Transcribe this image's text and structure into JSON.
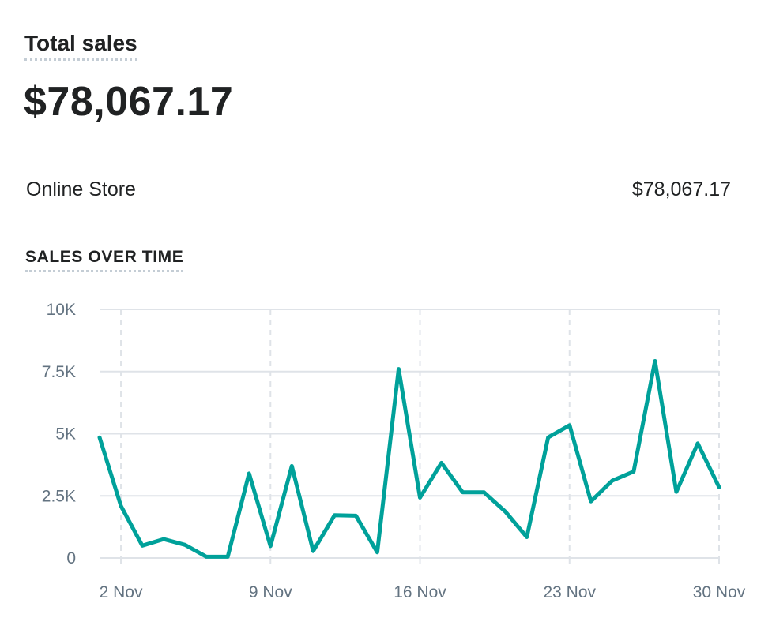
{
  "card": {
    "title": "Total sales",
    "total": "$78,067.17"
  },
  "breakdown": [
    {
      "label": "Online Store",
      "value": "$78,067.17"
    }
  ],
  "section": {
    "heading": "SALES OVER TIME"
  },
  "colors": {
    "line": "#00a19a",
    "grid": "#dfe3e8",
    "axis_text": "#637381"
  },
  "chart_data": {
    "type": "line",
    "title": "",
    "xlabel": "",
    "ylabel": "",
    "ylim": [
      0,
      10000
    ],
    "yticks": [
      0,
      2500,
      5000,
      7500,
      10000
    ],
    "ytick_labels": [
      "0",
      "2.5K",
      "5K",
      "7.5K",
      "10K"
    ],
    "x": [
      "1 Nov",
      "2 Nov",
      "3 Nov",
      "4 Nov",
      "5 Nov",
      "6 Nov",
      "7 Nov",
      "8 Nov",
      "9 Nov",
      "10 Nov",
      "11 Nov",
      "12 Nov",
      "13 Nov",
      "14 Nov",
      "15 Nov",
      "16 Nov",
      "17 Nov",
      "18 Nov",
      "19 Nov",
      "20 Nov",
      "21 Nov",
      "22 Nov",
      "23 Nov",
      "24 Nov",
      "25 Nov",
      "26 Nov",
      "27 Nov",
      "28 Nov",
      "29 Nov",
      "30 Nov"
    ],
    "xtick_labels": [
      "2 Nov",
      "9 Nov",
      "16 Nov",
      "23 Nov",
      "30 Nov"
    ],
    "xtick_indices": [
      1,
      8,
      15,
      22,
      29
    ],
    "grid": true,
    "series": [
      {
        "values": [
          4850,
          2100,
          500,
          760,
          530,
          50,
          50,
          3400,
          480,
          3700,
          280,
          1720,
          1700,
          230,
          7600,
          2430,
          3830,
          2640,
          2640,
          1860,
          840,
          4850,
          5340,
          2280,
          3110,
          3480,
          7920,
          2660,
          4610,
          2850
        ]
      }
    ]
  }
}
